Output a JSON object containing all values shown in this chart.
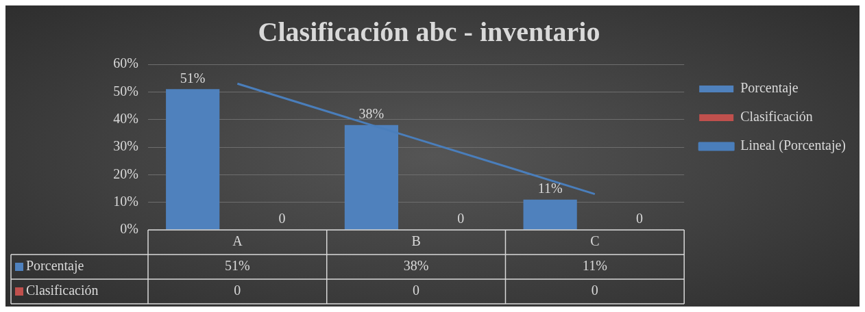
{
  "chart_data": {
    "type": "bar",
    "title": "Clasificación abc - inventario",
    "categories": [
      "A",
      "B",
      "C"
    ],
    "series": [
      {
        "name": "Porcentaje",
        "type": "bar",
        "color": "#4f81bd",
        "values": [
          51,
          38,
          11
        ],
        "value_labels": [
          "51%",
          "38%",
          "11%"
        ]
      },
      {
        "name": "Clasificación",
        "type": "bar",
        "color": "#c0504d",
        "values": [
          0,
          0,
          0
        ],
        "value_labels": [
          "0",
          "0",
          "0"
        ]
      },
      {
        "name": "Lineal (Porcentaje)",
        "type": "line",
        "color": "#4a7ebb",
        "values": [
          53,
          33,
          13
        ]
      }
    ],
    "ylim": [
      0,
      60
    ],
    "yticks": [
      {
        "value": 0,
        "label": "0%"
      },
      {
        "value": 10,
        "label": "10%"
      },
      {
        "value": 20,
        "label": "20%"
      },
      {
        "value": 30,
        "label": "30%"
      },
      {
        "value": 40,
        "label": "40%"
      },
      {
        "value": 50,
        "label": "50%"
      },
      {
        "value": 60,
        "label": "60%"
      }
    ],
    "grid": "y",
    "legend": "right",
    "marker": "none"
  }
}
